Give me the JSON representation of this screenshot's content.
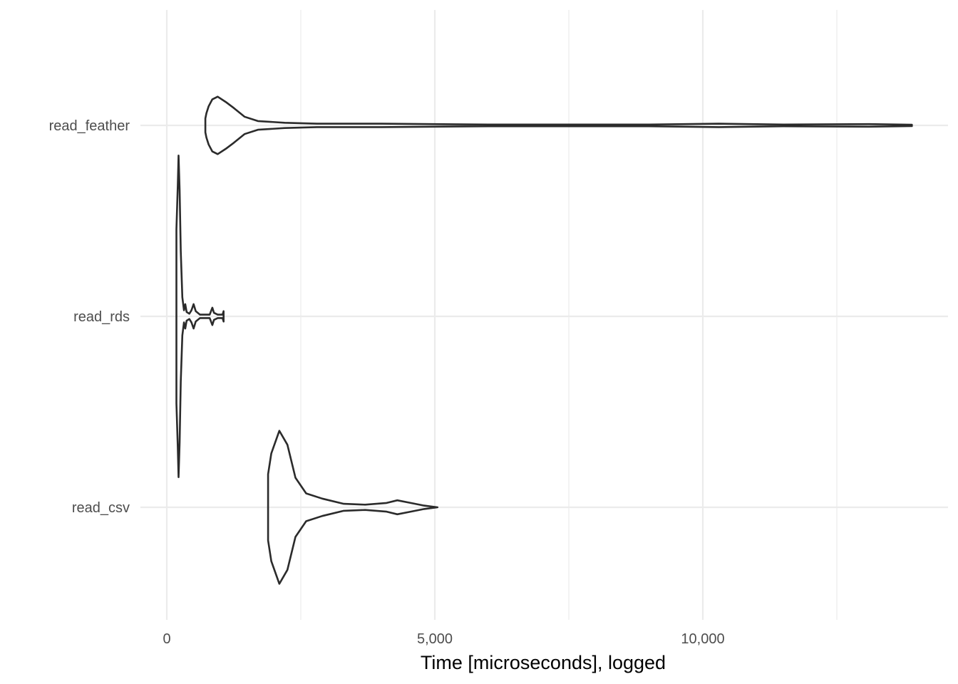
{
  "chart_data": {
    "type": "violin",
    "orientation": "horizontal",
    "categories": [
      "read_csv",
      "read_rds",
      "read_feather"
    ],
    "xlabel": "Time [microseconds], logged",
    "ylabel": "",
    "title": "",
    "xlim": [
      -230,
      14550
    ],
    "x_ticks": [
      0,
      5000,
      10000
    ],
    "x_tick_labels": [
      "0",
      "5,000",
      "10,000"
    ],
    "x_minor_ticks": [
      2500,
      7500,
      12500
    ],
    "grid": true,
    "theme": "minimal",
    "line_color": "#2b2b2b",
    "series": [
      {
        "category": "read_csv",
        "min": 1890,
        "max": 5050,
        "profile": [
          [
            1890,
            0.38
          ],
          [
            1950,
            0.62
          ],
          [
            2100,
            0.88
          ],
          [
            2250,
            0.72
          ],
          [
            2400,
            0.34
          ],
          [
            2600,
            0.16
          ],
          [
            2900,
            0.1
          ],
          [
            3300,
            0.04
          ],
          [
            3700,
            0.03
          ],
          [
            4100,
            0.05
          ],
          [
            4300,
            0.08
          ],
          [
            4550,
            0.05
          ],
          [
            4800,
            0.02
          ],
          [
            5050,
            0.0
          ]
        ]
      },
      {
        "category": "read_rds",
        "min": 180,
        "max": 1060,
        "profile": [
          [
            180,
            1.0
          ],
          [
            205,
            1.5
          ],
          [
            220,
            1.85
          ],
          [
            240,
            1.45
          ],
          [
            260,
            0.75
          ],
          [
            290,
            0.22
          ],
          [
            320,
            0.07
          ],
          [
            345,
            0.14
          ],
          [
            370,
            0.05
          ],
          [
            420,
            0.03
          ],
          [
            460,
            0.07
          ],
          [
            500,
            0.14
          ],
          [
            540,
            0.06
          ],
          [
            620,
            0.02
          ],
          [
            800,
            0.02
          ],
          [
            850,
            0.1
          ],
          [
            880,
            0.04
          ],
          [
            950,
            0.02
          ],
          [
            1040,
            0.02
          ],
          [
            1060,
            0.06
          ]
        ]
      },
      {
        "category": "read_feather",
        "min": 720,
        "max": 13900,
        "profile": [
          [
            720,
            0.08
          ],
          [
            740,
            0.14
          ],
          [
            780,
            0.22
          ],
          [
            850,
            0.3
          ],
          [
            950,
            0.33
          ],
          [
            1100,
            0.27
          ],
          [
            1250,
            0.2
          ],
          [
            1450,
            0.1
          ],
          [
            1700,
            0.05
          ],
          [
            2200,
            0.03
          ],
          [
            2800,
            0.02
          ],
          [
            4000,
            0.02
          ],
          [
            6000,
            0.01
          ],
          [
            7800,
            0.01
          ],
          [
            9000,
            0.01
          ],
          [
            10300,
            0.02
          ],
          [
            11500,
            0.01
          ],
          [
            13100,
            0.015
          ],
          [
            13900,
            0.008
          ]
        ]
      }
    ]
  }
}
